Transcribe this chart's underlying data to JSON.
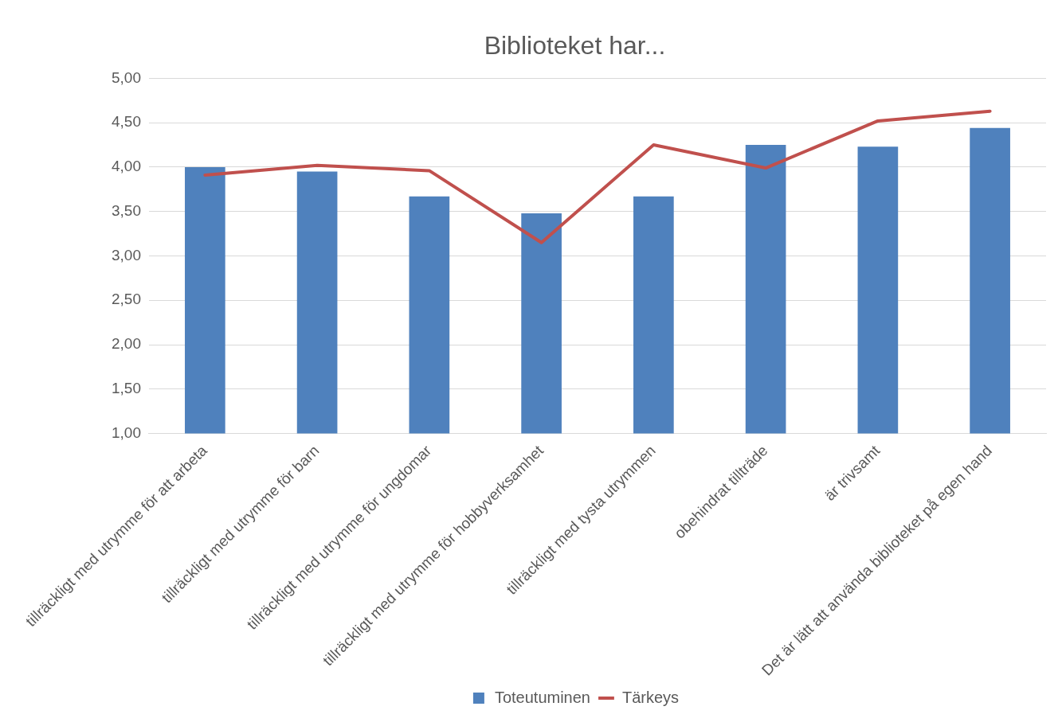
{
  "chart_data": {
    "type": "bar",
    "title": "Biblioteket har...",
    "categories": [
      "tillräckligt med utrymme för att arbeta",
      "tillräckligt med utrymme för barn",
      "tillräckligt med utrymme för ungdomar",
      "tillräckligt med utrymme för hobbyverksamhet",
      "tillräckligt med tysta utrymmen",
      "obehindrat tillträde",
      "är trivsamt",
      "Det är lätt att använda biblioteket på egen hand"
    ],
    "series": [
      {
        "name": "Toteutuminen",
        "color": "#4f81bd",
        "values": [
          4.0,
          3.95,
          3.67,
          3.48,
          3.67,
          4.25,
          4.23,
          4.44
        ]
      },
      {
        "name": "Tärkeys",
        "type": "line",
        "color": "#c0504d",
        "values": [
          3.91,
          4.02,
          3.96,
          3.15,
          4.25,
          3.99,
          4.52,
          4.63
        ]
      }
    ],
    "ylim": [
      1,
      5
    ],
    "yticks": [
      {
        "value": 1,
        "label": "1,00"
      },
      {
        "value": 1.5,
        "label": "1,50"
      },
      {
        "value": 2,
        "label": "2,00"
      },
      {
        "value": 2.5,
        "label": "2,50"
      },
      {
        "value": 3,
        "label": "3,00"
      },
      {
        "value": 3.5,
        "label": "3,50"
      },
      {
        "value": 4,
        "label": "4,00"
      },
      {
        "value": 4.5,
        "label": "4,50"
      },
      {
        "value": 5,
        "label": "5,00"
      }
    ],
    "grid": "y",
    "legend": "bottom",
    "marker": "none"
  }
}
